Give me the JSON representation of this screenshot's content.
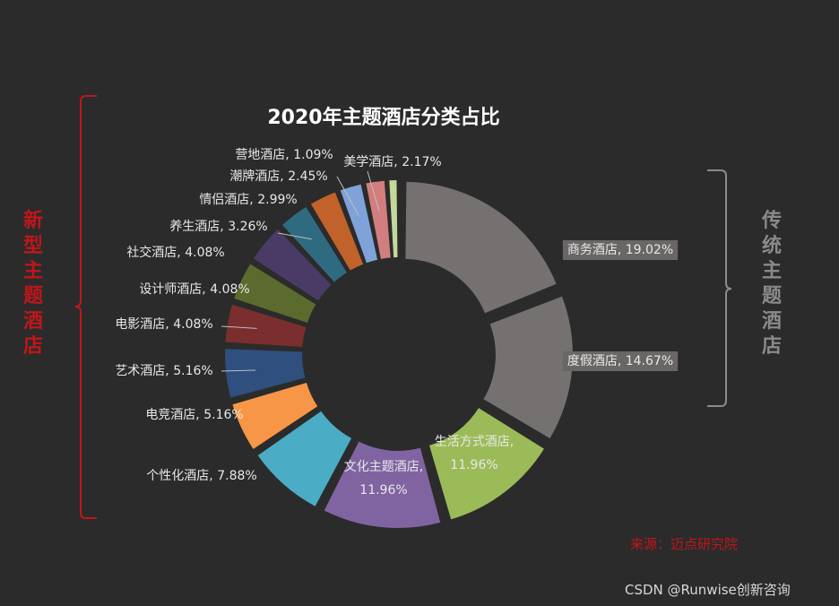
{
  "chart_data": {
    "type": "donut",
    "title": "2020年主题酒店分类占比",
    "slices": [
      {
        "name": "商务酒店",
        "label": "商务酒店, 19.02%",
        "value": 19.02,
        "color": "#767171"
      },
      {
        "name": "度假酒店",
        "label": "度假酒店, 14.67%",
        "value": 14.67,
        "color": "#767171"
      },
      {
        "name": "生活方式酒店",
        "label": "生活方式酒店, 11.96%",
        "value": 11.96,
        "color": "#9bbb59"
      },
      {
        "name": "文化主题酒店",
        "label": "文化主题酒店, 11.96%",
        "value": 11.96,
        "color": "#8064a2"
      },
      {
        "name": "个性化酒店",
        "label": "个性化酒店, 7.88%",
        "value": 7.88,
        "color": "#4bacc6"
      },
      {
        "name": "电竞酒店",
        "label": "电竞酒店, 5.16%",
        "value": 5.16,
        "color": "#f79646"
      },
      {
        "name": "艺术酒店",
        "label": "艺术酒店, 5.16%",
        "value": 5.16,
        "color": "#2f4f7f"
      },
      {
        "name": "电影酒店",
        "label": "电影酒店, 4.08%",
        "value": 4.08,
        "color": "#7a2e2e"
      },
      {
        "name": "设计师酒店",
        "label": "设计师酒店, 4.08%",
        "value": 4.08,
        "color": "#5a6b2d"
      },
      {
        "name": "社交酒店",
        "label": "社交酒店, 4.08%",
        "value": 4.08,
        "color": "#4a3b66"
      },
      {
        "name": "养生酒店",
        "label": "养生酒店, 3.26%",
        "value": 3.26,
        "color": "#2f6b80"
      },
      {
        "name": "情侣酒店",
        "label": "情侣酒店, 2.99%",
        "value": 2.99,
        "color": "#c0622a"
      },
      {
        "name": "潮牌酒店",
        "label": "潮牌酒店, 2.45%",
        "value": 2.45,
        "color": "#7fa3d8"
      },
      {
        "name": "美学酒店",
        "label": "美学酒店, 2.17%",
        "value": 2.17,
        "color": "#d27e7e"
      },
      {
        "name": "营地酒店",
        "label": "营地酒店, 1.09%",
        "value": 1.09,
        "color": "#c4d89a"
      }
    ]
  },
  "annotations": {
    "left_group": "新型主题酒店",
    "right_group": "传统主题酒店",
    "source": "来源：迈点研究院",
    "watermark": "CSDN @Runwise创新咨询"
  }
}
